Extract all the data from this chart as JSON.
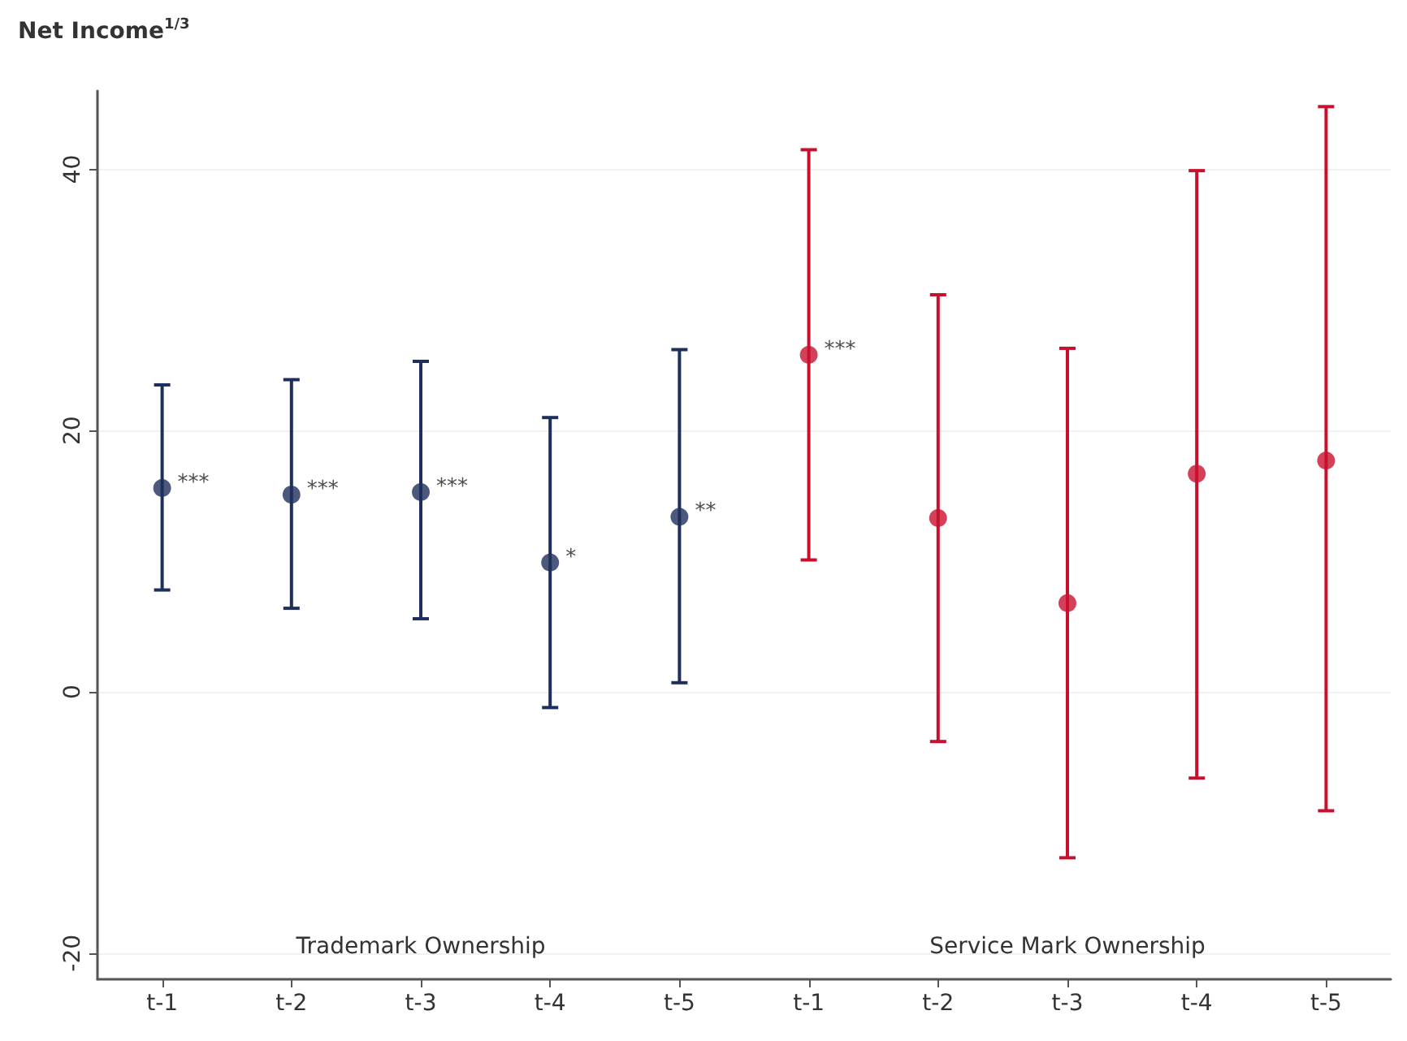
{
  "chart_data": {
    "type": "scatter",
    "ylabel": "Net Income$^{1/3}$",
    "categories": [
      "t-1",
      "t-2",
      "t-3",
      "t-4",
      "t-5",
      "t-1",
      "t-2",
      "t-3",
      "t-4",
      "t-5"
    ],
    "series": [
      {
        "color": "#1f2f5c",
        "values": [
          15.6,
          15.1,
          15.3,
          9.9,
          13.4,
          null,
          null,
          null,
          null,
          null
        ],
        "errors": [
          [
            7.8,
            23.5
          ],
          [
            6.4,
            23.9
          ],
          [
            5.6,
            25.3
          ],
          [
            -1.2,
            21.0
          ],
          [
            0.7,
            26.2
          ],
          null,
          null,
          null,
          null,
          null
        ],
        "value_labels": [
          "***",
          "***",
          "***",
          "*",
          "**",
          null,
          null,
          null,
          null,
          null
        ]
      },
      {
        "color": "#c8102e",
        "values": [
          null,
          null,
          null,
          null,
          null,
          25.8,
          13.3,
          6.8,
          16.7,
          17.7
        ],
        "errors": [
          null,
          null,
          null,
          null,
          null,
          [
            10.1,
            41.5
          ],
          [
            -3.8,
            30.4
          ],
          [
            -12.7,
            26.3
          ],
          [
            -6.6,
            39.9
          ],
          [
            -9.1,
            44.8
          ]
        ],
        "value_labels": [
          null,
          null,
          null,
          null,
          null,
          "***",
          null,
          null,
          null,
          null
        ]
      }
    ],
    "annotations": [
      "Trademark Ownership",
      "Service Mark Ownership"
    ],
    "ylim": [
      -22,
      46
    ],
    "yticks": [
      -20,
      0,
      20,
      40
    ],
    "grid": "y",
    "marker": "circle"
  }
}
